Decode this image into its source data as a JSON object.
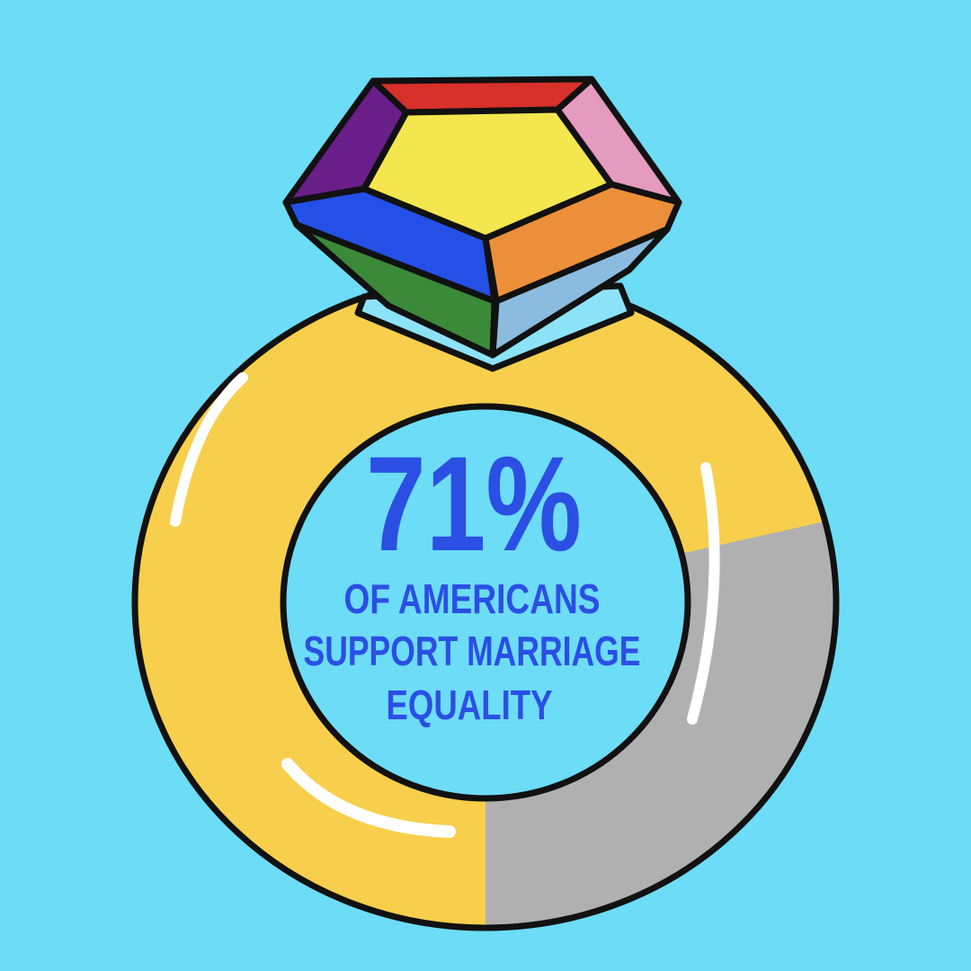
{
  "chart_data": {
    "type": "donut",
    "values": [
      71,
      29
    ],
    "value_labels": [
      "71%",
      null
    ],
    "colors": [
      "#f8cf4c",
      "#b1b0b1"
    ],
    "caption": [
      "OF AMERICANS",
      "SUPPORT MARRIAGE",
      "EQUALITY"
    ]
  }
}
